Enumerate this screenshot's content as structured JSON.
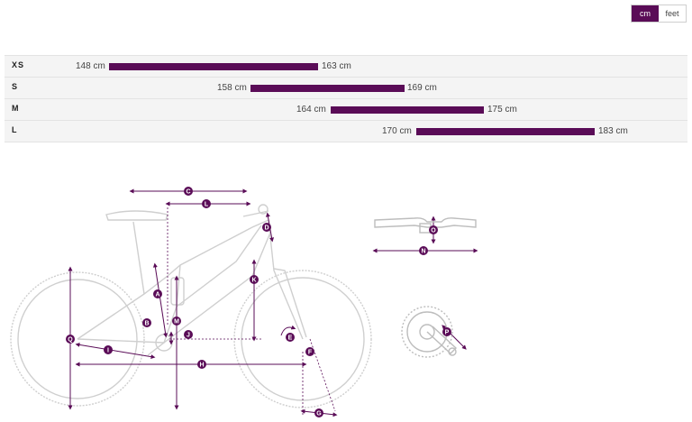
{
  "unit_toggle": {
    "cm_label": "cm",
    "feet_label": "feet",
    "selected": "cm"
  },
  "sizes": [
    {
      "label": "XS",
      "min": "148 cm",
      "max": "163 cm"
    },
    {
      "label": "S",
      "min": "158 cm",
      "max": "169 cm"
    },
    {
      "label": "M",
      "min": "164 cm",
      "max": "175 cm"
    },
    {
      "label": "L",
      "min": "170 cm",
      "max": "183 cm"
    }
  ],
  "geometry_labels": [
    "A",
    "B",
    "C",
    "D",
    "E",
    "F",
    "G",
    "H",
    "I",
    "J",
    "K",
    "L",
    "M",
    "N",
    "O",
    "P",
    "Q"
  ],
  "accent_color": "#5a0c57"
}
